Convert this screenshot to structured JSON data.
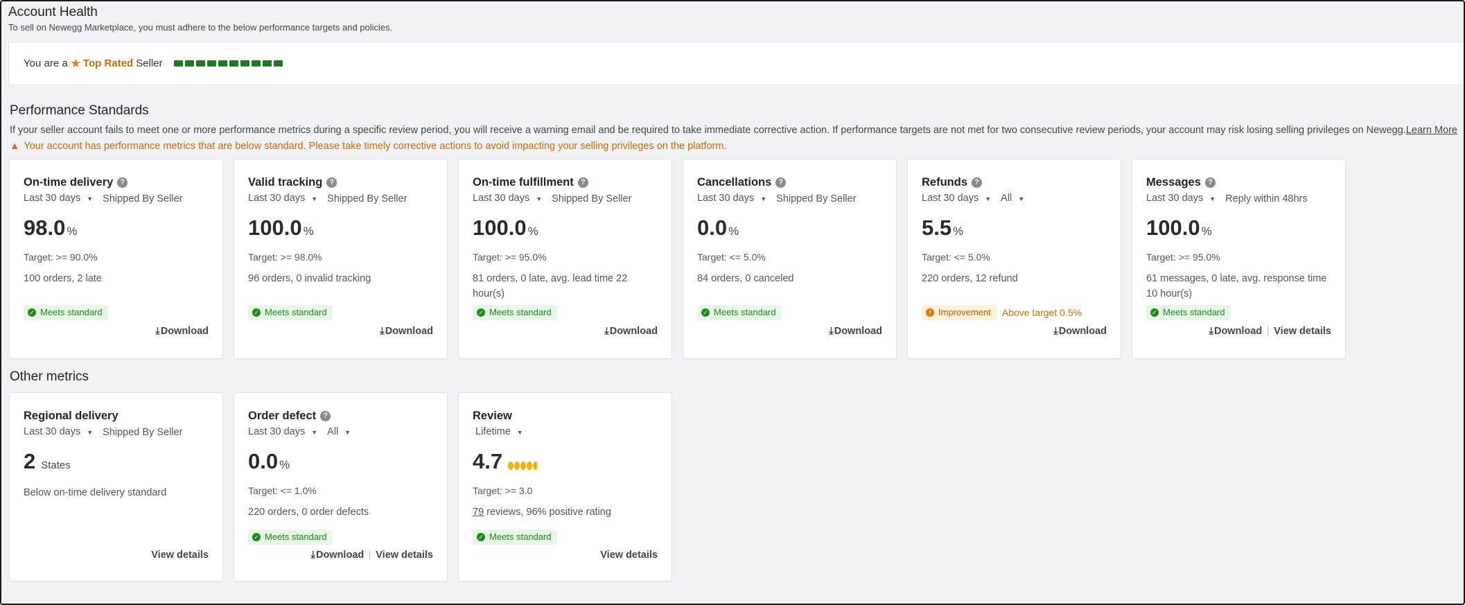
{
  "header": {
    "title": "Account Health",
    "subtitle": "To sell on Newegg Marketplace, you must adhere to the below performance targets and policies."
  },
  "seller": {
    "prefix": "You are a",
    "badge": "Top Rated",
    "suffix": "Seller",
    "level_segments": 10
  },
  "performance": {
    "title": "Performance Standards",
    "description": "If your seller account fails to meet one or more performance metrics during a specific review period, you will receive a warning email and be required to take immediate corrective action. If performance targets are not met for two consecutive review periods, your account may risk losing selling privileges on Newegg.",
    "learn_more": "Learn More",
    "warning": "Your account has performance metrics that are below standard. Please take timely corrective actions to avoid impacting your selling privileges on the platform.",
    "cards": [
      {
        "title": "On-time delivery",
        "period": "Last 30 days",
        "scope": "Shipped By Seller",
        "value": "98.0",
        "unit": "%",
        "target": "Target: >= 90.0%",
        "detail": "100 orders, 2 late",
        "status": "Meets standard",
        "download": "Download"
      },
      {
        "title": "Valid tracking",
        "period": "Last 30 days",
        "scope": "Shipped By Seller",
        "value": "100.0",
        "unit": "%",
        "target": "Target: >= 98.0%",
        "detail": "96 orders, 0 invalid tracking",
        "status": "Meets standard",
        "download": "Download"
      },
      {
        "title": "On-time fulfillment",
        "period": "Last 30 days",
        "scope": "Shipped By Seller",
        "value": "100.0",
        "unit": "%",
        "target": "Target: >= 95.0%",
        "detail": "81 orders, 0 late, avg. lead time 22 hour(s)",
        "status": "Meets standard",
        "download": "Download"
      },
      {
        "title": "Cancellations",
        "period": "Last 30 days",
        "scope": "Shipped By Seller",
        "value": "0.0",
        "unit": "%",
        "target": "Target: <= 5.0%",
        "detail": "84 orders, 0 canceled",
        "status": "Meets standard",
        "download": "Download"
      },
      {
        "title": "Refunds",
        "period": "Last 30 days",
        "scope": "All",
        "value": "5.5",
        "unit": "%",
        "target": "Target: <= 5.0%",
        "detail": "220 orders, 12 refund",
        "status": "Improvement",
        "status_note": "Above target 0.5%",
        "download": "Download"
      },
      {
        "title": "Messages",
        "period": "Last 30 days",
        "scope": "Reply within 48hrs",
        "value": "100.0",
        "unit": "%",
        "target": "Target: >= 95.0%",
        "detail": "61 messages, 0 late, avg. response time 10 hour(s)",
        "status": "Meets standard",
        "download": "Download",
        "view": "View details"
      }
    ]
  },
  "other": {
    "title": "Other metrics",
    "regional": {
      "title": "Regional delivery",
      "period": "Last 30 days",
      "scope": "Shipped By Seller",
      "value": "2",
      "unit": "States",
      "detail": "Below on-time delivery standard",
      "view": "View details"
    },
    "defect": {
      "title": "Order defect",
      "period": "Last 30 days",
      "scope": "All",
      "value": "0.0",
      "unit": "%",
      "target": "Target: <= 1.0%",
      "detail": "220 orders, 0 order defects",
      "status": "Meets standard",
      "download": "Download",
      "view": "View details"
    },
    "review": {
      "title": "Review",
      "period": "Lifetime",
      "value": "4.7",
      "rating": 4.7,
      "target": "Target: >= 3.0",
      "count": "79",
      "detail": " reviews, 96% positive rating",
      "status": "Meets standard",
      "view": "View details"
    }
  },
  "icons": {
    "help": "help-circle-icon",
    "star": "star-icon",
    "caret": "caret-down-icon",
    "download": "download-icon",
    "check": "check-circle-icon",
    "warning": "warning-triangle-icon",
    "info": "info-circle-icon"
  },
  "colors": {
    "accent_orange": "#c56a00",
    "level_green": "#1f7a1f",
    "ok_green": "#1d8a1d",
    "warn_orange": "#d06a00"
  }
}
